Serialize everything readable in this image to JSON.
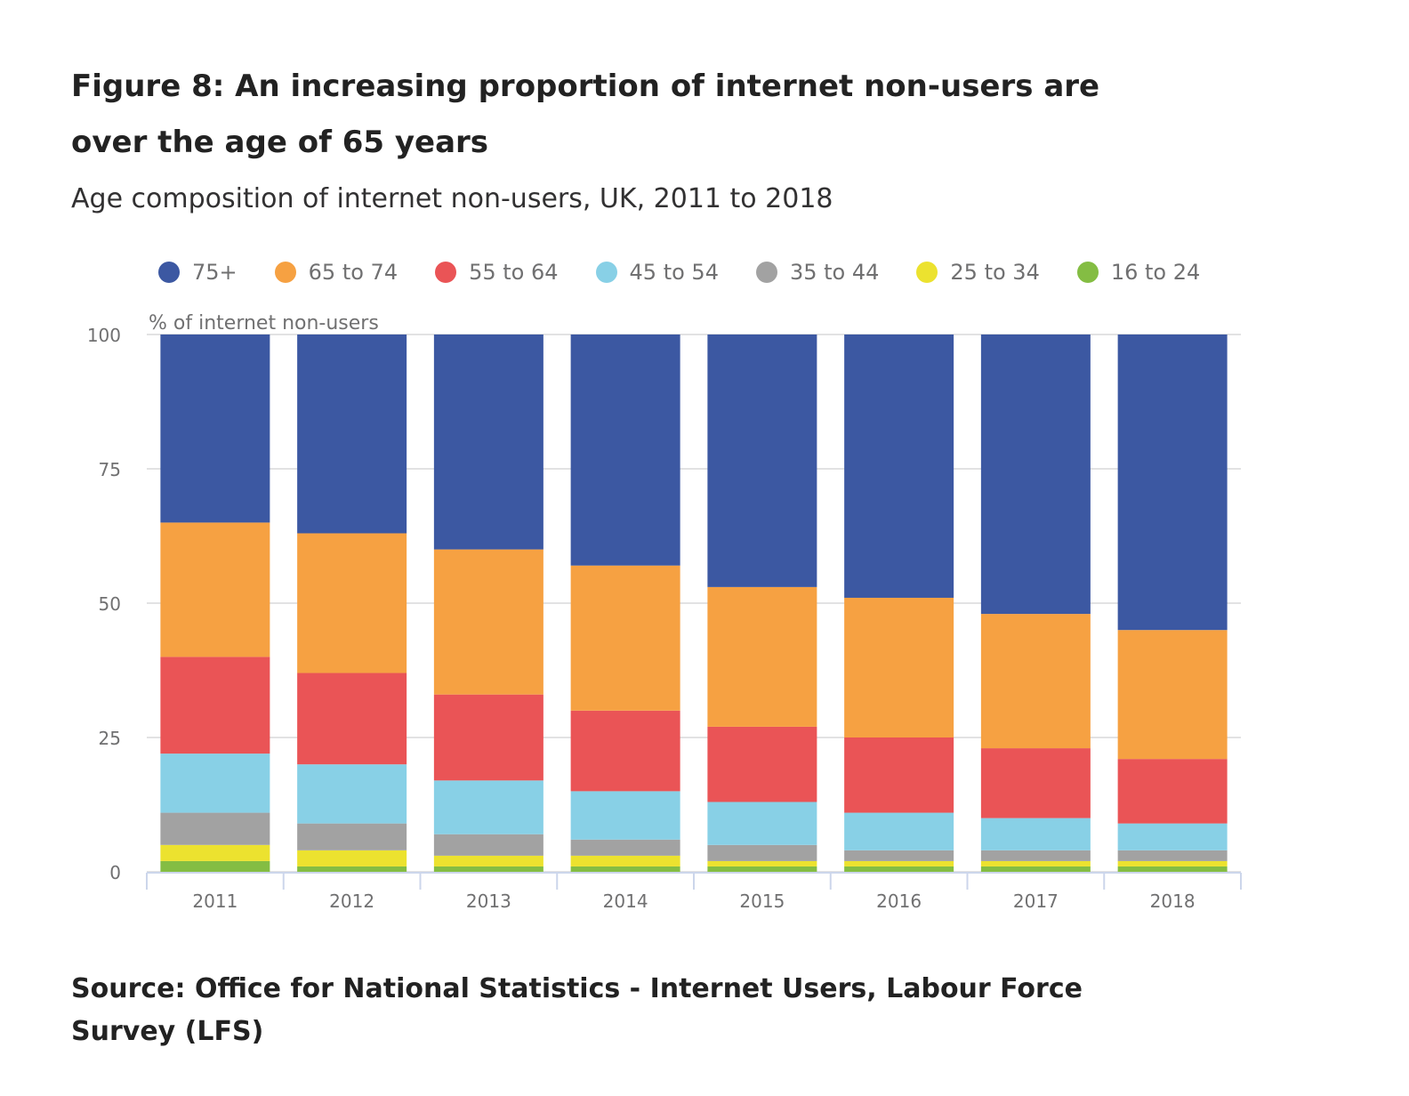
{
  "header": {
    "title": "Figure 8: An increasing proportion of internet non-users are over the age of 65 years",
    "subtitle": "Age composition of internet non-users, UK, 2011 to 2018"
  },
  "footer": {
    "source": "Source: Office for National Statistics - Internet Users, Labour Force Survey (LFS)"
  },
  "chart_data": {
    "type": "bar",
    "stacked": true,
    "title": "Figure 8: An increasing proportion of internet non-users are over the age of 65 years",
    "subtitle": "Age composition of internet non-users, UK, 2011 to 2018",
    "xlabel": "",
    "ylabel": "% of internet non-users",
    "ylim": [
      0,
      100
    ],
    "yticks": [
      0,
      25,
      50,
      75,
      100
    ],
    "grid": true,
    "legend_position": "top",
    "categories": [
      "2011",
      "2012",
      "2013",
      "2014",
      "2015",
      "2016",
      "2017",
      "2018"
    ],
    "series": [
      {
        "name": "16 to 24",
        "color": "#84bd43",
        "values": [
          2,
          1,
          1,
          1,
          1,
          1,
          1,
          1
        ]
      },
      {
        "name": "25 to 34",
        "color": "#ece22f",
        "values": [
          3,
          3,
          2,
          2,
          1,
          1,
          1,
          1
        ]
      },
      {
        "name": "35 to 44",
        "color": "#a2a2a2",
        "values": [
          6,
          5,
          4,
          3,
          3,
          2,
          2,
          2
        ]
      },
      {
        "name": "45 to 54",
        "color": "#88d0e6",
        "values": [
          11,
          11,
          10,
          9,
          8,
          7,
          6,
          5
        ]
      },
      {
        "name": "55 to 64",
        "color": "#ea5456",
        "values": [
          18,
          17,
          16,
          15,
          14,
          14,
          13,
          12
        ]
      },
      {
        "name": "65 to 74",
        "color": "#f6a142",
        "values": [
          25,
          26,
          27,
          27,
          26,
          26,
          25,
          24
        ]
      },
      {
        "name": "75+",
        "color": "#3c58a2",
        "values": [
          35,
          37,
          40,
          43,
          47,
          49,
          52,
          55
        ]
      }
    ],
    "legend_order": [
      "75+",
      "65 to 74",
      "55 to 64",
      "45 to 54",
      "35 to 44",
      "25 to 34",
      "16 to 24"
    ]
  }
}
